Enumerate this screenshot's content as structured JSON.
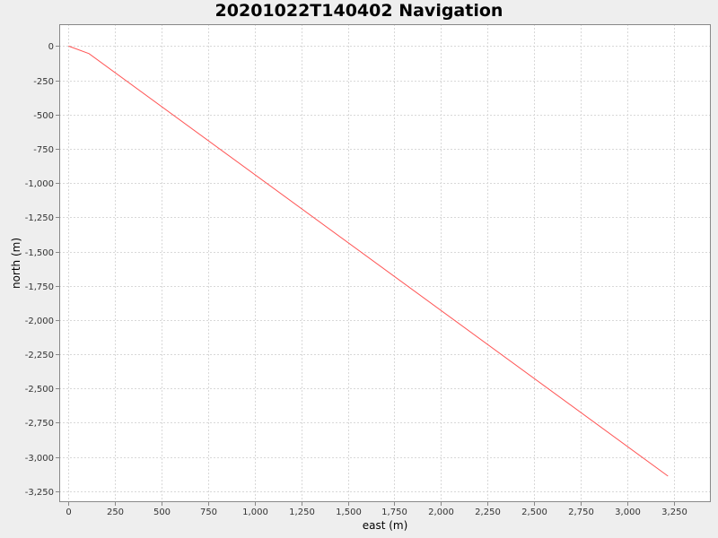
{
  "chart_data": {
    "type": "line",
    "title": "20201022T140402 Navigation",
    "xlabel": "east (m)",
    "ylabel": "north (m)",
    "xlim": [
      -50,
      3450
    ],
    "ylim": [
      -3330,
      160
    ],
    "xticks": [
      0,
      250,
      500,
      750,
      1000,
      1250,
      1500,
      1750,
      2000,
      2250,
      2500,
      2750,
      3000,
      3250
    ],
    "xtick_labels": [
      "0",
      "250",
      "500",
      "750",
      "1,000",
      "1,250",
      "1,500",
      "1,750",
      "2,000",
      "2,250",
      "2,500",
      "2,750",
      "3,000",
      "3,250"
    ],
    "yticks": [
      0,
      -250,
      -500,
      -750,
      -1000,
      -1250,
      -1500,
      -1750,
      -2000,
      -2250,
      -2500,
      -2750,
      -3000,
      -3250
    ],
    "ytick_labels": [
      "0",
      "-250",
      "-500",
      "-750",
      "-1,000",
      "-1,250",
      "-1,500",
      "-1,750",
      "-2,000",
      "-2,250",
      "-2,500",
      "-2,750",
      "-3,000",
      "-3,250"
    ],
    "grid": true,
    "series": [
      {
        "color": "#ff5555",
        "x": [
          0,
          110,
          3220
        ],
        "y": [
          0,
          -55,
          -3140
        ]
      }
    ]
  }
}
